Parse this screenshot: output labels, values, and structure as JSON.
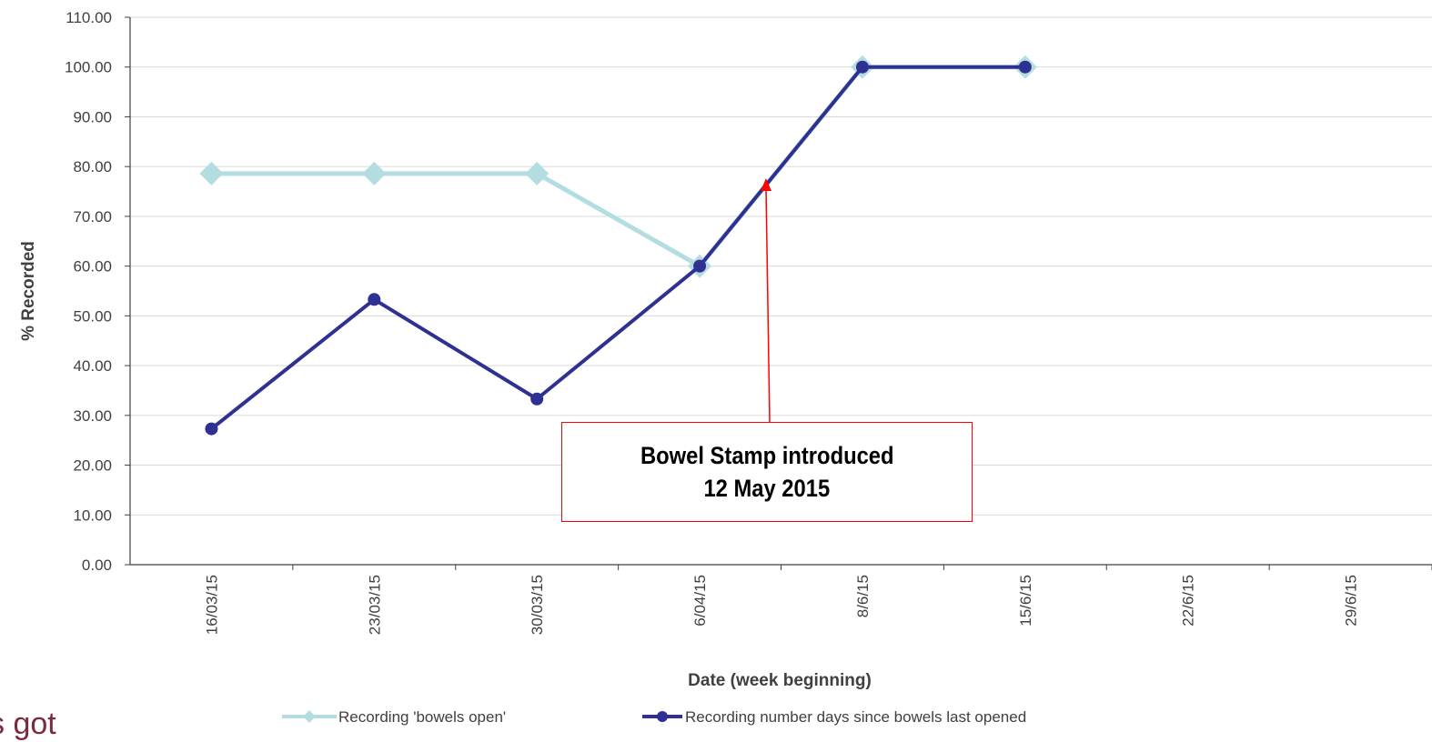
{
  "chart_data": {
    "type": "line",
    "x_categories": [
      "16/03/15",
      "23/03/15",
      "30/03/15",
      "6/04/15",
      "8/6/15",
      "15/6/15",
      "22/6/15",
      "29/6/15"
    ],
    "xlabel": "Date (week beginning)",
    "ylabel": "% Recorded",
    "ylim": [
      0,
      110
    ],
    "y_ticks": [
      "0.00",
      "10.00",
      "20.00",
      "30.00",
      "40.00",
      "50.00",
      "60.00",
      "70.00",
      "80.00",
      "90.00",
      "100.00",
      "110.00"
    ],
    "grid": "horizontal",
    "legend_position": "bottom",
    "series": [
      {
        "name": "Recording 'bowels open'",
        "color": "#b4dde1",
        "marker": "diamond",
        "values": [
          78.6,
          78.6,
          78.6,
          60.0,
          100.0,
          100.0,
          null,
          null
        ]
      },
      {
        "name": "Recording number days since bowels last opened",
        "color": "#2e3192",
        "marker": "circle",
        "values": [
          27.3,
          53.3,
          33.3,
          60.0,
          100.0,
          100.0,
          null,
          null
        ]
      }
    ],
    "annotation": {
      "line1": "Bowel Stamp introduced",
      "line2": "12 May 2015",
      "color": "#ff0000"
    }
  },
  "corner_text": "s got"
}
